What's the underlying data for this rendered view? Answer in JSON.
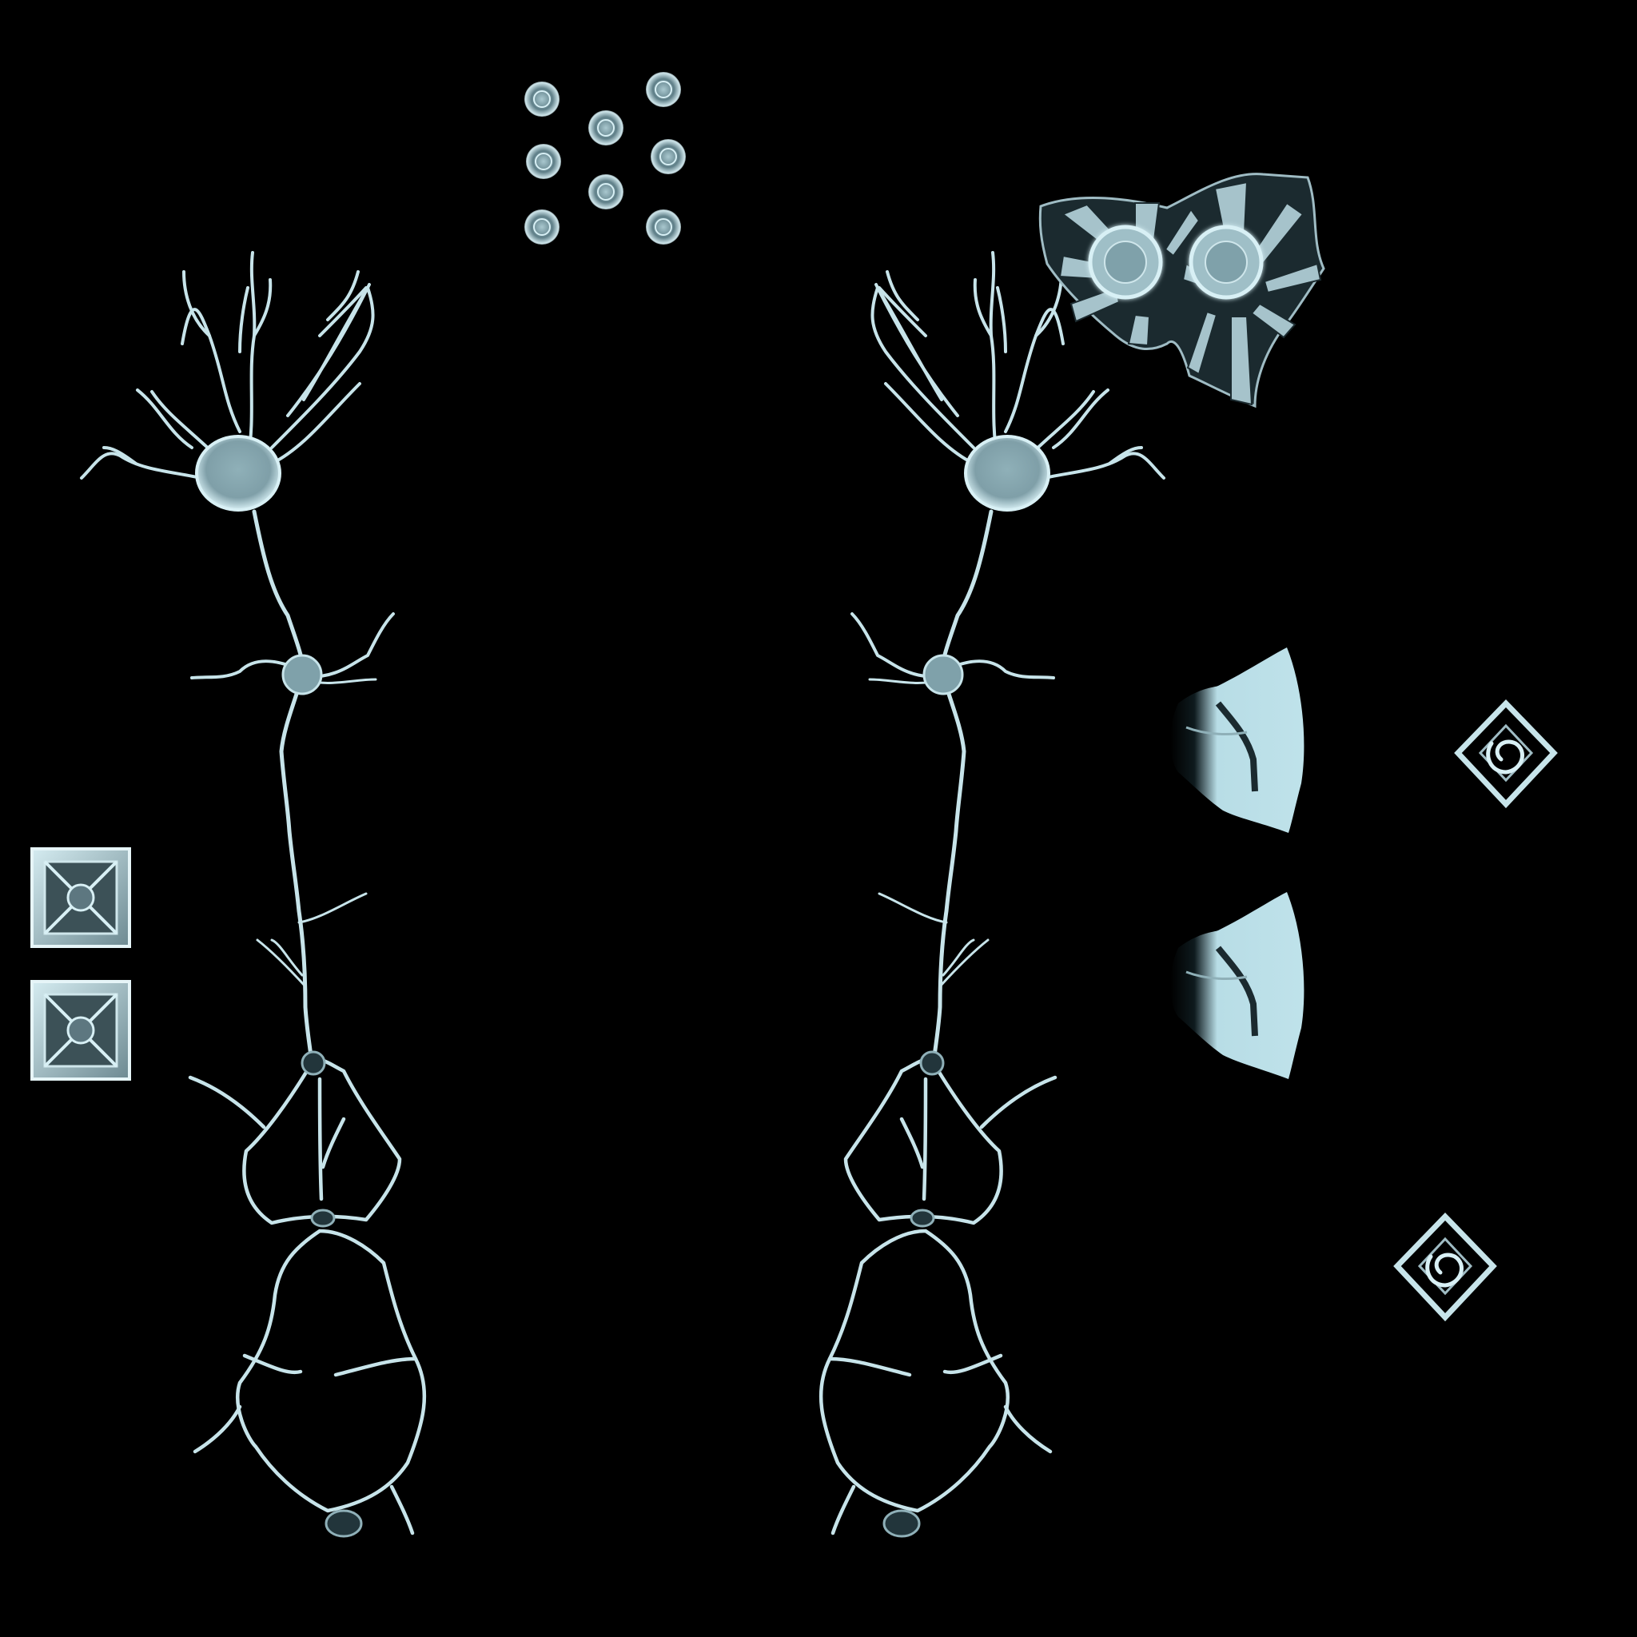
{
  "colors": {
    "background": "#000000",
    "ice_light": "#d2ecf2",
    "ice_mid": "#9fbcc4",
    "ice_dark": "#5d7780",
    "panel_fill": "#b8dde6",
    "shadow": "#1b2a2f"
  },
  "texture_elements": [
    {
      "name": "neuron-strand-left",
      "kind": "neuron-strand"
    },
    {
      "name": "neuron-strand-right",
      "kind": "neuron-strand"
    },
    {
      "name": "spore-cluster",
      "kind": "spore",
      "count": 8
    },
    {
      "name": "crystal-fan-texture",
      "kind": "crystal-fan"
    },
    {
      "name": "ice-panel-upper",
      "kind": "ice-panel"
    },
    {
      "name": "ice-panel-lower",
      "kind": "ice-panel"
    },
    {
      "name": "square-tile-upper",
      "kind": "square-tile"
    },
    {
      "name": "square-tile-lower",
      "kind": "square-tile"
    },
    {
      "name": "spiral-diamond-upper",
      "kind": "spiral-diamond"
    },
    {
      "name": "spiral-diamond-lower",
      "kind": "spiral-diamond"
    }
  ]
}
